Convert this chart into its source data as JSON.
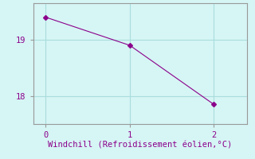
{
  "x": [
    0,
    1,
    2
  ],
  "y": [
    19.4,
    18.9,
    17.85
  ],
  "line_color": "#8B008B",
  "marker": "D",
  "marker_size": 3,
  "background_color": "#d6f5f5",
  "xlabel": "Windchill (Refroidissement éolien,°C)",
  "xlabel_color": "#8B008B",
  "xlabel_fontsize": 7.5,
  "tick_color": "#8B008B",
  "tick_fontsize": 7.5,
  "axis_color": "#999999",
  "grid_color": "#aadddd",
  "xlim": [
    -0.15,
    2.4
  ],
  "ylim": [
    17.5,
    19.65
  ],
  "yticks": [
    18,
    19
  ],
  "xticks": [
    0,
    1,
    2
  ],
  "font_family": "monospace"
}
